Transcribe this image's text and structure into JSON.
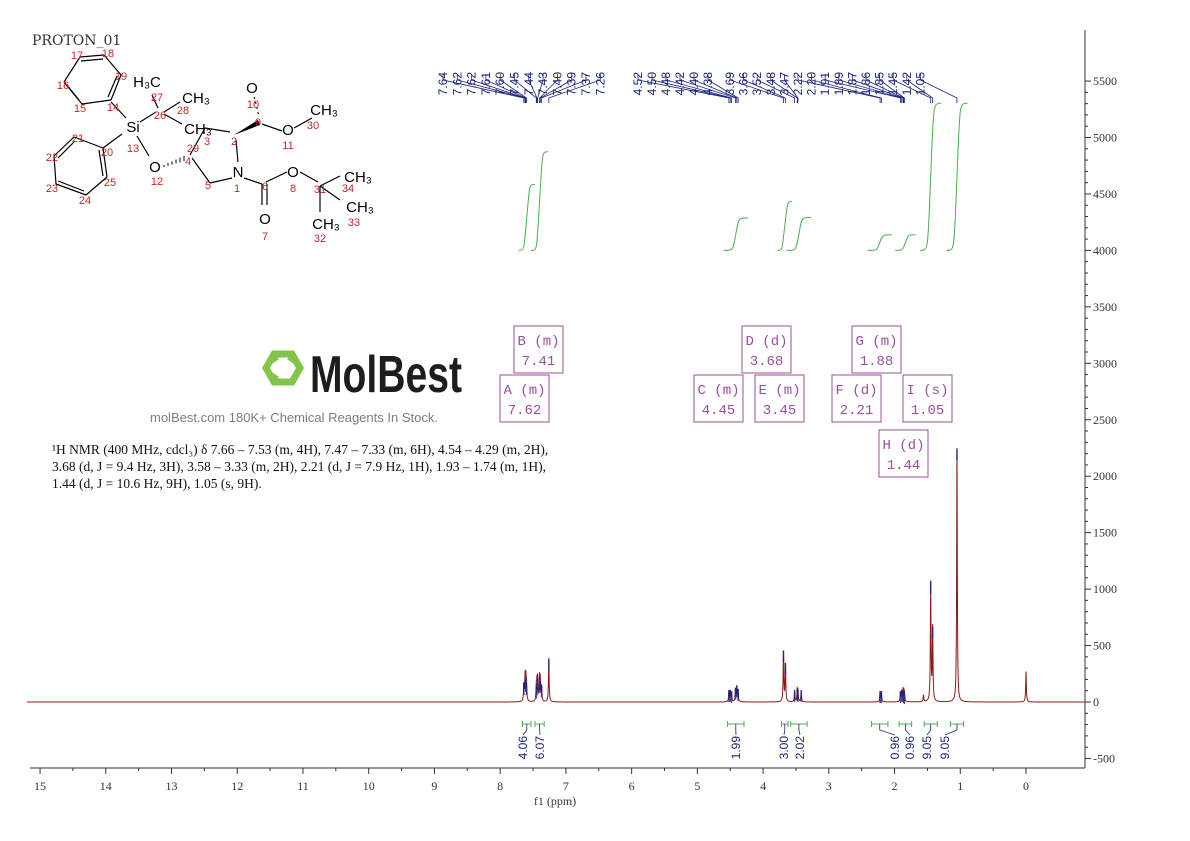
{
  "experiment_name": "PROTON_01",
  "description_lines": [
    "¹H NMR (400 MHz, cdcl₃) δ 7.66 – 7.53 (m, 4H), 7.47 – 7.33 (m, 6H), 4.54 – 4.29 (m, 2H),",
    "3.68 (d, J = 9.4 Hz, 3H), 3.58 – 3.33 (m, 2H), 2.21 (d, J = 7.9 Hz, 1H), 1.93 – 1.74 (m, 1H),",
    "1.44 (d, J = 10.6 Hz, 9H), 1.05 (s, 9H)."
  ],
  "watermark": {
    "logo_text": "MolBest",
    "tagline": "molBest.com 180K+ Chemical Reagents In Stock.",
    "logo_color": "#7dc242"
  },
  "structure": {
    "atom_labels": [
      "H₃C",
      "CH₃",
      "CH₃",
      "Si",
      "O",
      "N",
      "O",
      "O",
      "CH₃",
      "O",
      "O",
      "CH₃",
      "CH₃",
      "CH₃"
    ],
    "atom_numbers": [
      "1",
      "2",
      "3",
      "4",
      "5",
      "6",
      "7",
      "8",
      "9",
      "10",
      "11",
      "12",
      "13",
      "14",
      "15",
      "16",
      "17",
      "18",
      "19",
      "20",
      "21",
      "22",
      "23",
      "24",
      "25",
      "26",
      "27",
      "28",
      "29",
      "30",
      "31",
      "32",
      "33",
      "34"
    ]
  },
  "chart_data": {
    "type": "line",
    "xlabel": "f1 (ppm)",
    "ylabel": "",
    "xlim": [
      15.2,
      -0.9
    ],
    "ylim": [
      -550,
      5900
    ],
    "x_reversed": true,
    "x_ticks": [
      "15",
      "14",
      "13",
      "12",
      "11",
      "10",
      "9",
      "8",
      "7",
      "6",
      "5",
      "4",
      "3",
      "2",
      "1",
      "0"
    ],
    "y_ticks": [
      "5500",
      "5000",
      "4500",
      "4000",
      "3500",
      "3000",
      "2500",
      "2000",
      "1500",
      "1000",
      "500",
      "0",
      "-500"
    ],
    "y_axis_side": "right",
    "grid": false,
    "colors": {
      "spectrum": "#8b1a1a",
      "peak_marks": "#1a237e",
      "integral": "#4caf50",
      "multiplet": "#9c4f9c",
      "labels": "#1a237e"
    },
    "peaks": [
      {
        "ppm": 7.64,
        "intensity": 150
      },
      {
        "ppm": 7.62,
        "intensity": 210
      },
      {
        "ppm": 7.61,
        "intensity": 180
      },
      {
        "ppm": 7.6,
        "intensity": 150
      },
      {
        "ppm": 7.45,
        "intensity": 120
      },
      {
        "ppm": 7.44,
        "intensity": 150
      },
      {
        "ppm": 7.43,
        "intensity": 190
      },
      {
        "ppm": 7.4,
        "intensity": 200
      },
      {
        "ppm": 7.39,
        "intensity": 170
      },
      {
        "ppm": 7.37,
        "intensity": 130
      },
      {
        "ppm": 7.26,
        "intensity": 370
      },
      {
        "ppm": 4.52,
        "intensity": 90
      },
      {
        "ppm": 4.5,
        "intensity": 90
      },
      {
        "ppm": 4.48,
        "intensity": 80
      },
      {
        "ppm": 4.42,
        "intensity": 110
      },
      {
        "ppm": 4.4,
        "intensity": 130
      },
      {
        "ppm": 4.38,
        "intensity": 100
      },
      {
        "ppm": 3.69,
        "intensity": 440
      },
      {
        "ppm": 3.66,
        "intensity": 330
      },
      {
        "ppm": 3.52,
        "intensity": 90
      },
      {
        "ppm": 3.48,
        "intensity": 100
      },
      {
        "ppm": 3.47,
        "intensity": 90
      },
      {
        "ppm": 3.42,
        "intensity": 90
      },
      {
        "ppm": 2.22,
        "intensity": 80
      },
      {
        "ppm": 2.2,
        "intensity": 80
      },
      {
        "ppm": 1.91,
        "intensity": 80
      },
      {
        "ppm": 1.89,
        "intensity": 90
      },
      {
        "ppm": 1.87,
        "intensity": 90
      },
      {
        "ppm": 1.86,
        "intensity": 80
      },
      {
        "ppm": 1.85,
        "intensity": 70
      },
      {
        "ppm": 1.56,
        "intensity": 60
      },
      {
        "ppm": 1.45,
        "intensity": 1050
      },
      {
        "ppm": 1.42,
        "intensity": 650
      },
      {
        "ppm": 1.05,
        "intensity": 2230
      },
      {
        "ppm": 0.0,
        "intensity": 270
      }
    ],
    "peak_labels": [
      [
        "7.64",
        "7.62",
        "7.62",
        "7.61",
        "7.60",
        "7.45",
        "7.44",
        "7.43",
        "7.40",
        "7.39",
        "7.37",
        "7.26"
      ],
      [
        "4.52",
        "4.50",
        "4.48",
        "4.42",
        "4.40",
        "4.38"
      ],
      [
        "3.69",
        "3.66",
        "3.52",
        "3.48",
        "3.47",
        "2.22",
        "2.20",
        "1.91",
        "1.89",
        "1.87",
        "1.86",
        "1.85",
        "1.45",
        "1.42",
        "1.05"
      ]
    ],
    "multiplets": [
      {
        "label": "A",
        "mult": "m",
        "shift": "7.62"
      },
      {
        "label": "B",
        "mult": "m",
        "shift": "7.41"
      },
      {
        "label": "C",
        "mult": "m",
        "shift": "4.45"
      },
      {
        "label": "D",
        "mult": "d",
        "shift": "3.68"
      },
      {
        "label": "E",
        "mult": "m",
        "shift": "3.45"
      },
      {
        "label": "F",
        "mult": "d",
        "shift": "2.21"
      },
      {
        "label": "G",
        "mult": "m",
        "shift": "1.88"
      },
      {
        "label": "H",
        "mult": "d",
        "shift": "1.44"
      },
      {
        "label": "I",
        "mult": "s",
        "shift": "1.05"
      }
    ],
    "integrals": [
      {
        "from": 7.66,
        "to": 7.53,
        "value": "4.06"
      },
      {
        "from": 7.47,
        "to": 7.33,
        "value": "6.07"
      },
      {
        "from": 4.54,
        "to": 4.29,
        "value": "1.99"
      },
      {
        "from": 3.72,
        "to": 3.62,
        "value": "3.00"
      },
      {
        "from": 3.58,
        "to": 3.33,
        "value": "2.02"
      },
      {
        "from": 2.35,
        "to": 2.1,
        "value": "0.96"
      },
      {
        "from": 1.93,
        "to": 1.74,
        "value": "0.96"
      },
      {
        "from": 1.55,
        "to": 1.35,
        "value": "9.05"
      },
      {
        "from": 1.15,
        "to": 0.95,
        "value": "9.05"
      }
    ]
  }
}
